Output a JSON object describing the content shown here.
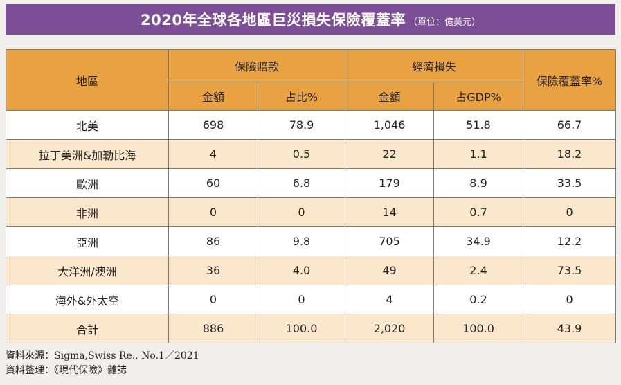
{
  "header": {
    "title": "2020年全球各地區巨災損失保險覆蓋率",
    "unit": "（單位：億美元）"
  },
  "table": {
    "region_header": "地區",
    "insured_header": "保險賠款",
    "economic_header": "經濟損失",
    "coverage_header": "保險覆蓋率%",
    "amount_header": "金額",
    "share_header": "占比%",
    "amount_header2": "金額",
    "gdp_header": "占GDP%",
    "rows": [
      {
        "region": "北美",
        "insured_amount": "698",
        "insured_share": "78.9",
        "economic_amount": "1,046",
        "gdp_share": "51.8",
        "coverage": "66.7"
      },
      {
        "region": "拉丁美洲&加勒比海",
        "insured_amount": "4",
        "insured_share": "0.5",
        "economic_amount": "22",
        "gdp_share": "1.1",
        "coverage": "18.2"
      },
      {
        "region": "歐洲",
        "insured_amount": "60",
        "insured_share": "6.8",
        "economic_amount": "179",
        "gdp_share": "8.9",
        "coverage": "33.5"
      },
      {
        "region": "非洲",
        "insured_amount": "0",
        "insured_share": "0",
        "economic_amount": "14",
        "gdp_share": "0.7",
        "coverage": "0"
      },
      {
        "region": "亞洲",
        "insured_amount": "86",
        "insured_share": "9.8",
        "economic_amount": "705",
        "gdp_share": "34.9",
        "coverage": "12.2"
      },
      {
        "region": "大洋洲/澳洲",
        "insured_amount": "36",
        "insured_share": "4.0",
        "economic_amount": "49",
        "gdp_share": "2.4",
        "coverage": "73.5"
      },
      {
        "region": "海外&外太空",
        "insured_amount": "0",
        "insured_share": "0",
        "economic_amount": "4",
        "gdp_share": "0.2",
        "coverage": "0"
      },
      {
        "region": "合計",
        "insured_amount": "886",
        "insured_share": "100.0",
        "economic_amount": "2,020",
        "gdp_share": "100.0",
        "coverage": "43.9"
      }
    ]
  },
  "footer": {
    "source": "資料來源：Sigma,Swiss Re., No.1／2021",
    "compiled": "資料整理：《現代保險》雜誌"
  },
  "colors": {
    "banner": "#7b4e96",
    "header_fill": "#e9a242",
    "stripe": "#fbe8cc",
    "background": "#f1efec"
  }
}
